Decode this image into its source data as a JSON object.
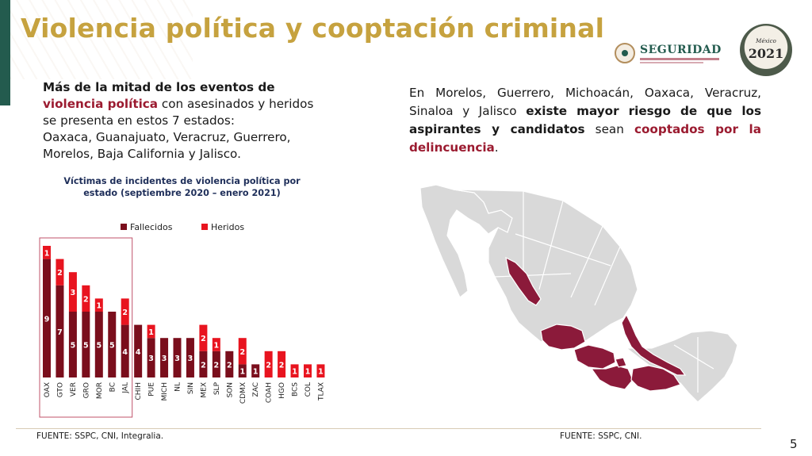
{
  "title": "Violencia política y cooptación criminal",
  "logos": {
    "seguridad": "SEGURIDAD",
    "anniversary_year": "2021",
    "anniversary_country": "México"
  },
  "left": {
    "line1_bold": "Más de la mitad de los eventos de",
    "line2_red": "violencia política",
    "line2_rest": " con asesinados y heridos",
    "line3": "se presenta en estos 7 estados:",
    "line4": "Oaxaca, Guanajuato, Veracruz, Guerrero,",
    "line5": "Morelos, Baja California y Jalisco."
  },
  "right": {
    "part1": "En Morelos, Guerrero, Michoacán, Oaxaca, Veracruz, Sinaloa y Jalisco ",
    "part2_bold": "existe mayor riesgo de que los aspirantes y candidatos",
    "part3": " sean ",
    "part4_red": "cooptados por la delincuencia",
    "part5": "."
  },
  "chart_title_line1": "Víctimas de incidentes de violencia política por",
  "chart_title_line2": "estado (septiembre 2020 – enero 2021)",
  "chart_data": {
    "type": "bar",
    "stacked": true,
    "title": "Víctimas de incidentes de violencia política por estado (septiembre 2020 – enero 2021)",
    "categories": [
      "OAX",
      "GTO",
      "VER",
      "GRO",
      "MOR",
      "BC",
      "JAL",
      "CHIH",
      "PUE",
      "MICH",
      "NL",
      "SIN",
      "MEX",
      "SLP",
      "SON",
      "CDMX",
      "ZAC",
      "COAH",
      "HGO",
      "BCS",
      "COL",
      "TLAX"
    ],
    "series": [
      {
        "name": "Fallecidos",
        "values": [
          9,
          7,
          5,
          5,
          5,
          5,
          4,
          4,
          3,
          3,
          3,
          3,
          2,
          2,
          2,
          1,
          1,
          0,
          0,
          0,
          0,
          0
        ]
      },
      {
        "name": "Heridos",
        "values": [
          1,
          2,
          3,
          2,
          1,
          0,
          2,
          0,
          1,
          0,
          0,
          0,
          2,
          1,
          0,
          2,
          0,
          2,
          2,
          1,
          1,
          1
        ]
      }
    ],
    "legend_position": "top",
    "colors": {
      "Fallecidos": "#7a0e1c",
      "Heridos": "#e8141f"
    },
    "highlight_categories": [
      "OAX",
      "GTO",
      "VER",
      "GRO",
      "MOR",
      "BC",
      "JAL"
    ]
  },
  "sources": {
    "left": "FUENTE: SSPC, CNI, Integralia.",
    "right": "FUENTE: SSPC, CNI."
  },
  "page_number": "5",
  "map": {
    "base_color": "#d9d9d9",
    "highlight_color": "#8b1a3a",
    "border_color": "#ffffff",
    "highlighted_states": [
      "Sinaloa",
      "Jalisco",
      "Michoacán",
      "Guerrero",
      "Morelos",
      "Oaxaca",
      "Veracruz"
    ]
  }
}
